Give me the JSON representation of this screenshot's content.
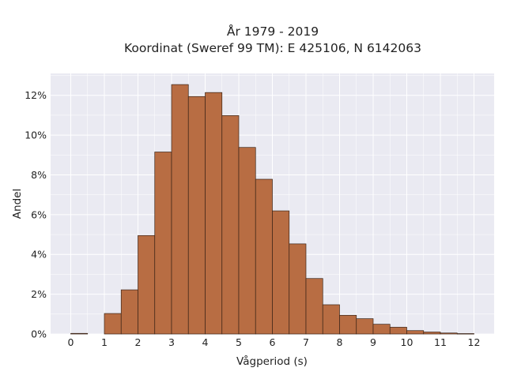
{
  "chart_data": {
    "type": "bar",
    "title_line1": "År 1979 - 2019",
    "title_line2": "Koordinat (Sweref 99 TM): E 425106, N 6142063",
    "xlabel": "Vågperiod (s)",
    "ylabel": "Andel",
    "xlim": [
      -0.6,
      12.6
    ],
    "ylim": [
      0,
      0.131
    ],
    "x_ticks": [
      0,
      1,
      2,
      3,
      4,
      5,
      6,
      7,
      8,
      9,
      10,
      11,
      12
    ],
    "y_ticks": [
      0,
      0.02,
      0.04,
      0.06,
      0.08,
      0.1,
      0.12
    ],
    "y_tick_labels": [
      "0%",
      "2%",
      "4%",
      "6%",
      "8%",
      "10%",
      "12%"
    ],
    "grid": true,
    "bin_width": 0.5,
    "bins": [
      {
        "x0": 0.0,
        "value": 0.0003
      },
      {
        "x0": 1.0,
        "value": 0.0103
      },
      {
        "x0": 1.5,
        "value": 0.0222
      },
      {
        "x0": 2.0,
        "value": 0.0495
      },
      {
        "x0": 2.5,
        "value": 0.0915
      },
      {
        "x0": 3.0,
        "value": 0.1254
      },
      {
        "x0": 3.5,
        "value": 0.1194
      },
      {
        "x0": 4.0,
        "value": 0.1214
      },
      {
        "x0": 4.5,
        "value": 0.1098
      },
      {
        "x0": 5.0,
        "value": 0.0938
      },
      {
        "x0": 5.5,
        "value": 0.0778
      },
      {
        "x0": 6.0,
        "value": 0.0619
      },
      {
        "x0": 6.5,
        "value": 0.0453
      },
      {
        "x0": 7.0,
        "value": 0.0279
      },
      {
        "x0": 7.5,
        "value": 0.0147
      },
      {
        "x0": 8.0,
        "value": 0.0094
      },
      {
        "x0": 8.5,
        "value": 0.0077
      },
      {
        "x0": 9.0,
        "value": 0.0049
      },
      {
        "x0": 9.5,
        "value": 0.0034
      },
      {
        "x0": 10.0,
        "value": 0.0017
      },
      {
        "x0": 10.5,
        "value": 0.001
      },
      {
        "x0": 11.0,
        "value": 0.0005
      },
      {
        "x0": 11.5,
        "value": 0.0002
      }
    ],
    "colors": {
      "bar_fill": "#b86d43",
      "bar_edge": "#3b2417",
      "plot_bg": "#eaeaf2",
      "grid": "#ffffff"
    }
  }
}
